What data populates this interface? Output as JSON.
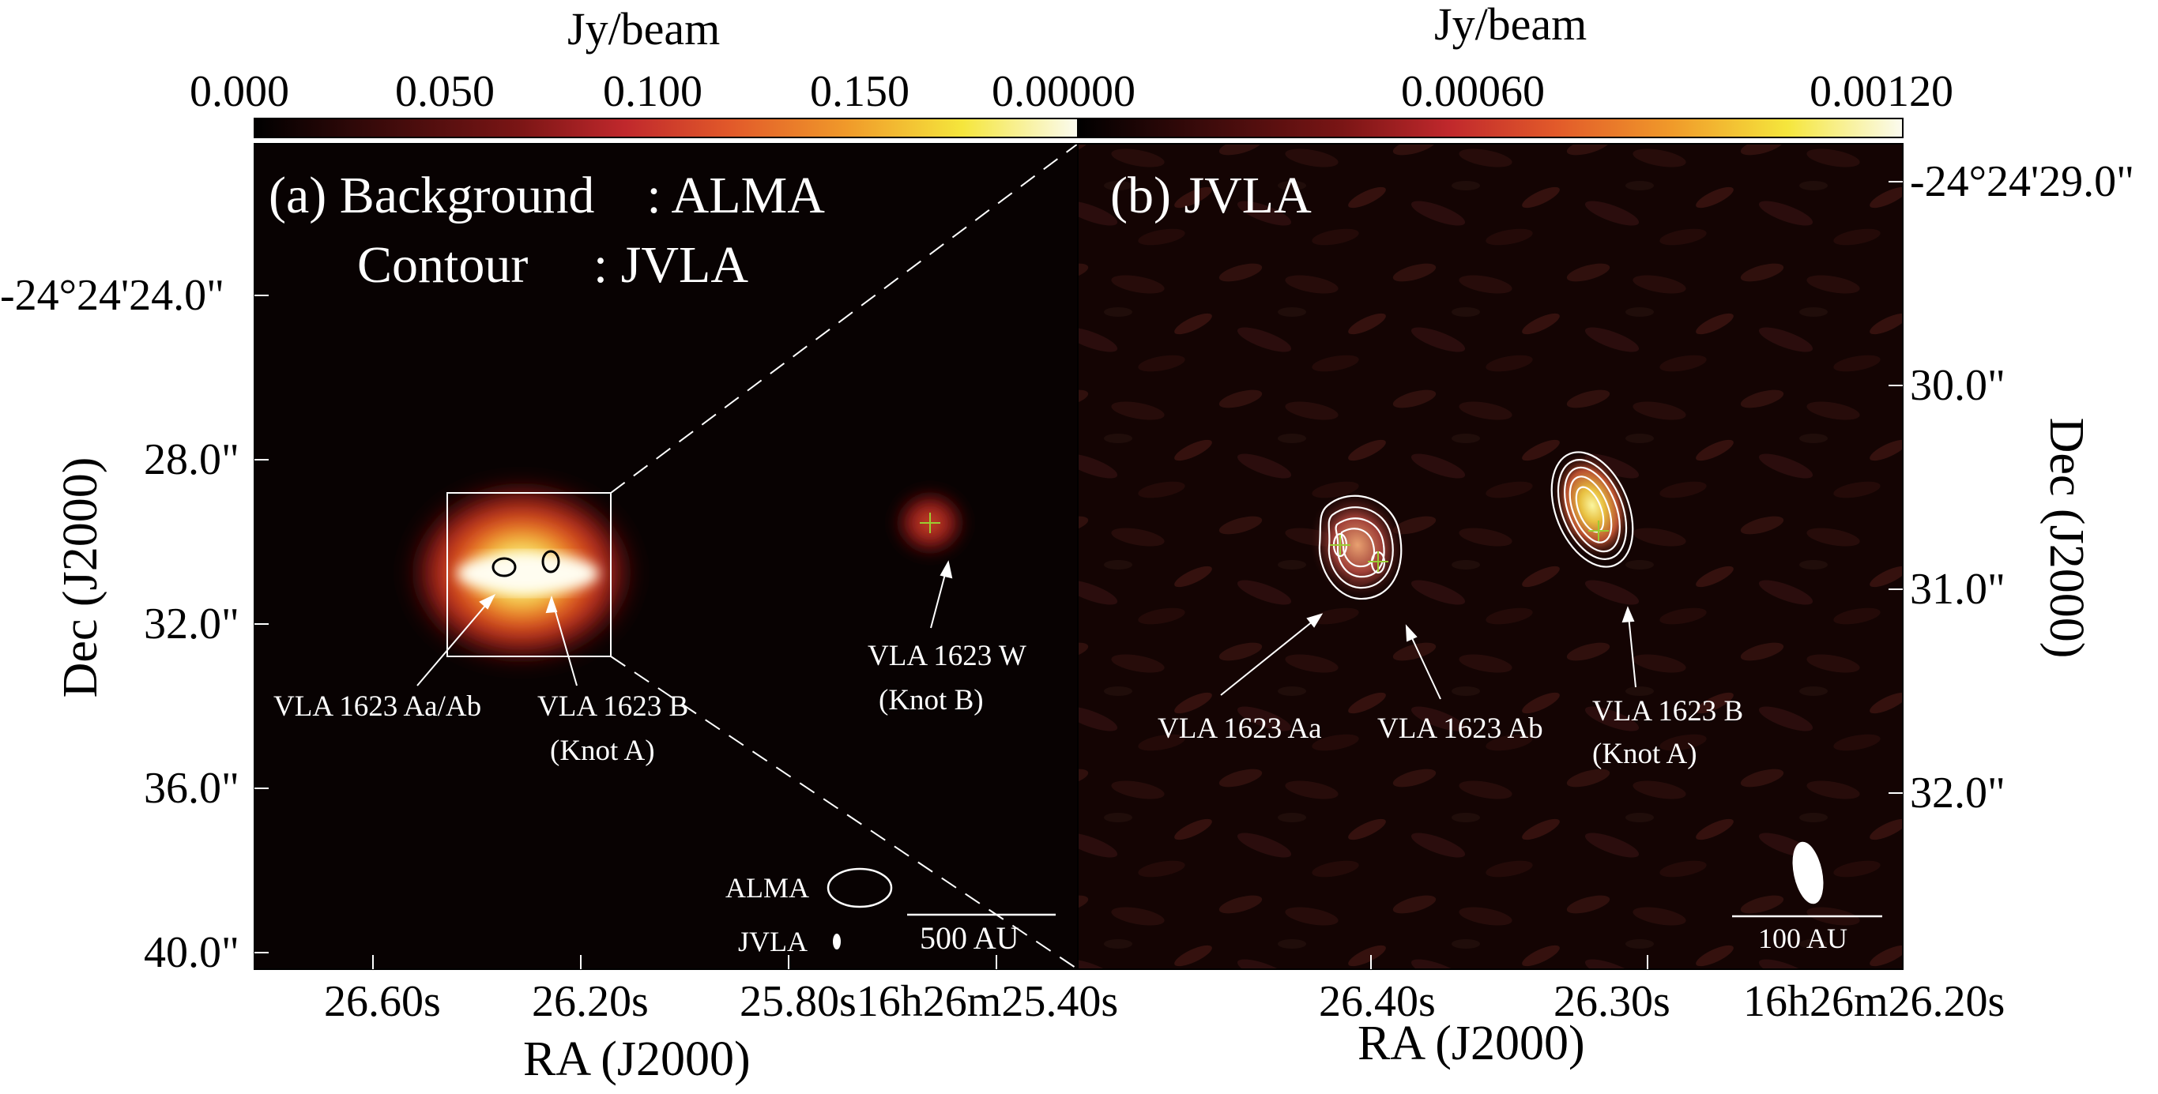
{
  "colorbars": [
    {
      "unit": "Jy/beam",
      "ticks": [
        "0.000",
        "0.050",
        "0.100",
        "0.150",
        "0.00000"
      ]
    },
    {
      "unit": "Jy/beam",
      "ticks": [
        "0.00060",
        "0.00120"
      ]
    }
  ],
  "colormap": [
    "#000000",
    "#3a0a0a",
    "#7a1515",
    "#c0282c",
    "#e25a2a",
    "#f09a2a",
    "#f5e63c",
    "#fbfbf0"
  ],
  "panel_a": {
    "title_line1": "(a) Background    : ALMA",
    "title_line2": "Contour     : JVLA",
    "yticks": [
      "-24°24'24.0\"",
      "28.0\"",
      "32.0\"",
      "36.0\"",
      "40.0\""
    ],
    "xticks": [
      "26.60s",
      "26.20s",
      "25.80s16h26m25.40s"
    ],
    "xlabel": "RA (J2000)",
    "ylabel": "Dec (J2000)",
    "sources": [
      {
        "line1": "VLA 1623 Aa/Ab",
        "line2": ""
      },
      {
        "line1": "VLA 1623 B",
        "line2": "(Knot A)"
      },
      {
        "line1": "VLA 1623 W",
        "line2": "(Knot B)"
      }
    ],
    "beam_alma": "ALMA",
    "beam_jvla": "JVLA",
    "scale_bar": "500 AU"
  },
  "panel_b": {
    "title": "(b) JVLA",
    "yticks": [
      "-24°24'29.0\"",
      "30.0\"",
      "31.0\"",
      "32.0\""
    ],
    "xticks": [
      "26.40s",
      "26.30s",
      "16h26m26.20s"
    ],
    "xlabel": "RA (J2000)",
    "ylabel": "Dec (J2000)",
    "sources": [
      {
        "line1": "VLA 1623 Aa",
        "line2": ""
      },
      {
        "line1": "VLA 1623 Ab",
        "line2": ""
      },
      {
        "line1": "VLA 1623 B",
        "line2": "(Knot A)"
      }
    ],
    "scale_bar": "100 AU"
  }
}
